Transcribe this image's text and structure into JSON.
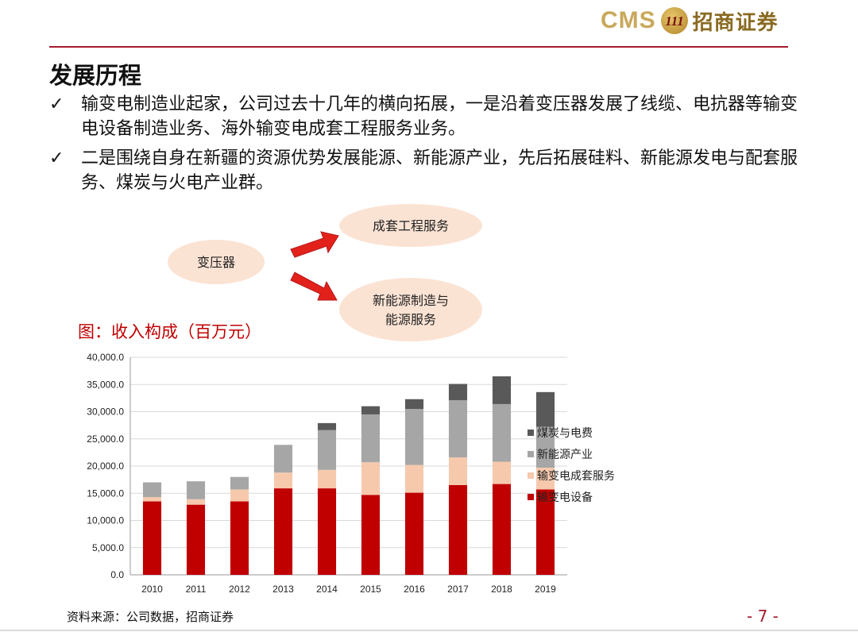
{
  "header": {
    "logo_text": "CMS",
    "logo_badge": "111",
    "logo_name": "招商证券"
  },
  "title": "发展历程",
  "bullets": [
    {
      "check": "✓",
      "text": "输变电制造业起家，公司过去十几年的横向拓展，一是沿着变压器发展了线缆、电抗器等输变电设备制造业务、海外输变电成套工程服务业务。"
    },
    {
      "check": "✓",
      "text": "二是围绕自身在新疆的资源优势发展能源、新能源产业，先后拓展硅料、新能源发电与配套服务、煤炭与火电产业群。"
    }
  ],
  "diagram": {
    "source_node": "变压器",
    "target_top": "成套工程服务",
    "target_bottom_line1": "新能源制造与",
    "target_bottom_line2": "能源服务"
  },
  "figure_caption": "图：收入构成（百万元）",
  "chart_data": {
    "type": "bar",
    "stacked": true,
    "categories": [
      "2010",
      "2011",
      "2012",
      "2013",
      "2014",
      "2015",
      "2016",
      "2017",
      "2018",
      "2019"
    ],
    "y_tick_labels": [
      "0.0",
      "5,000.0",
      "10,000.0",
      "15,000.0",
      "20,000.0",
      "25,000.0",
      "30,000.0",
      "35,000.0",
      "40,000.0"
    ],
    "ylim": [
      0,
      40000
    ],
    "series": [
      {
        "name": "输变电设备",
        "color": "#c00000",
        "values": [
          13500,
          12900,
          13500,
          15900,
          15900,
          14700,
          15100,
          16500,
          16700,
          15700
        ]
      },
      {
        "name": "输变电成套服务",
        "color": "#f6c9ad",
        "values": [
          800,
          1000,
          2200,
          2900,
          3400,
          6000,
          5100,
          5100,
          4100,
          4000
        ]
      },
      {
        "name": "新能源产业",
        "color": "#a6a6a6",
        "values": [
          2700,
          3300,
          2300,
          5100,
          7300,
          8800,
          10300,
          10500,
          10600,
          7500
        ]
      },
      {
        "name": "煤炭与电费",
        "color": "#595959",
        "values": [
          0,
          0,
          0,
          0,
          1300,
          1500,
          1800,
          3000,
          5100,
          6400
        ]
      }
    ],
    "legend_order": [
      "煤炭与电费",
      "新能源产业",
      "输变电成套服务",
      "输变电设备"
    ],
    "legend_position": "right",
    "grid": true
  },
  "source": "资料来源：公司数据，招商证券",
  "page_number": "- 7 -"
}
